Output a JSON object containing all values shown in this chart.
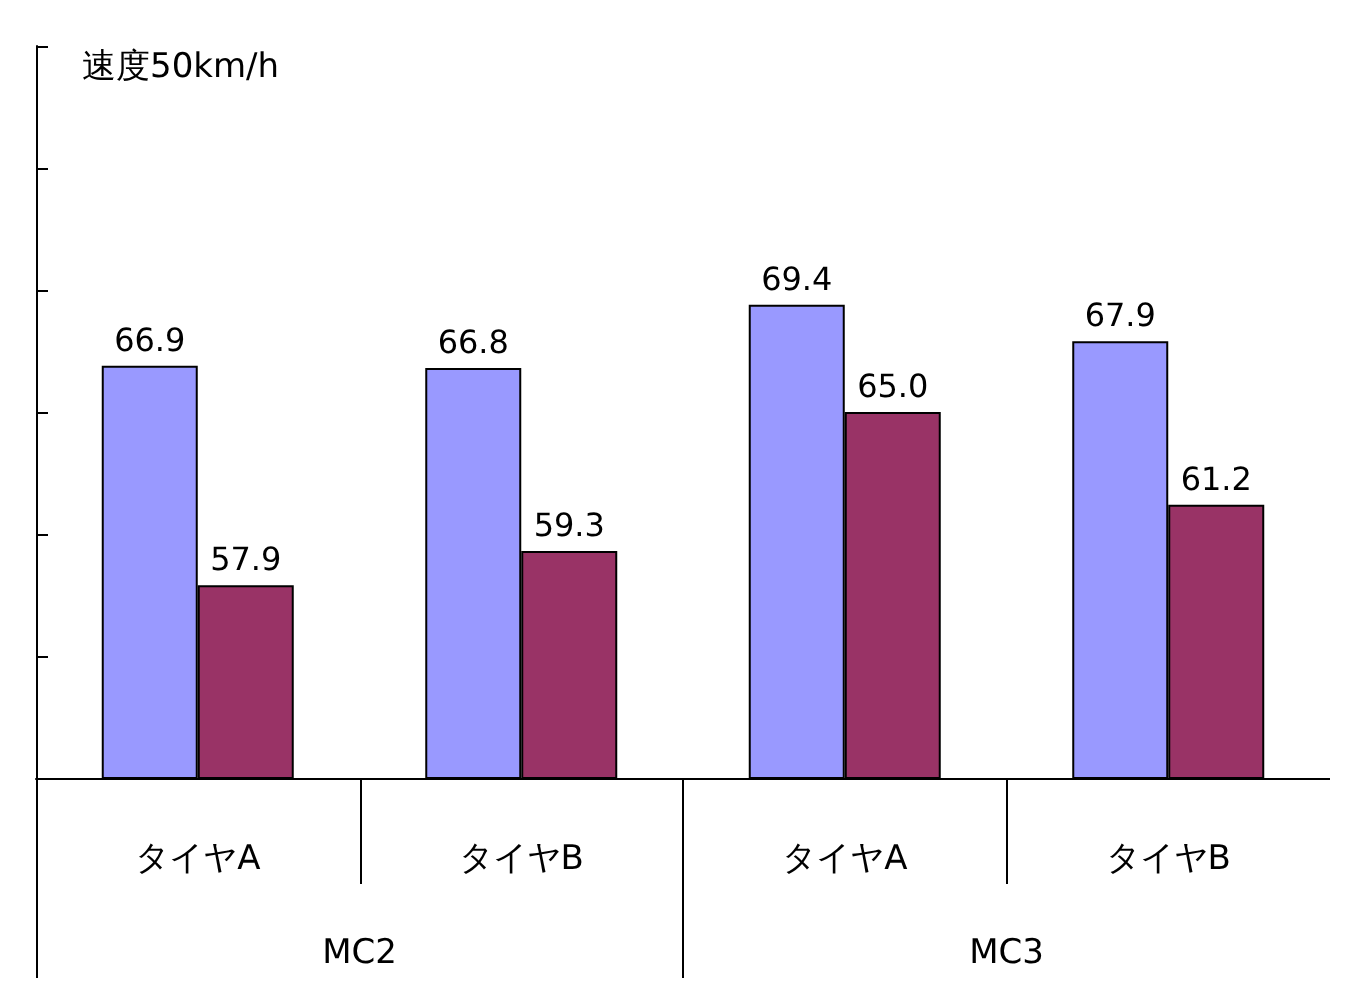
{
  "chart_data": {
    "type": "bar",
    "title": "速度50km/h",
    "categories": [
      "タイヤA",
      "タイヤB",
      "タイヤA",
      "タイヤB"
    ],
    "series": [
      {
        "color": "#9999ff",
        "values": [
          66.9,
          66.8,
          69.4,
          67.9
        ],
        "value_labels": [
          "66.9",
          "66.8",
          "69.4",
          "67.9"
        ]
      },
      {
        "color": "#993366",
        "values": [
          57.9,
          59.3,
          65.0,
          61.2
        ],
        "value_labels": [
          "57.9",
          "59.3",
          "65.0",
          "61.2"
        ]
      }
    ],
    "ylim": [
      50,
      80
    ],
    "yticks": [
      {
        "value": 50,
        "label": null
      },
      {
        "value": 55,
        "label": null
      },
      {
        "value": 60,
        "label": null
      },
      {
        "value": 65,
        "label": null
      },
      {
        "value": 70,
        "label": null
      },
      {
        "value": 75,
        "label": null
      },
      {
        "value": 80,
        "label": null
      }
    ],
    "tick_labels": "x",
    "grid": false,
    "annotations": [
      "MC2",
      "MC3"
    ]
  }
}
